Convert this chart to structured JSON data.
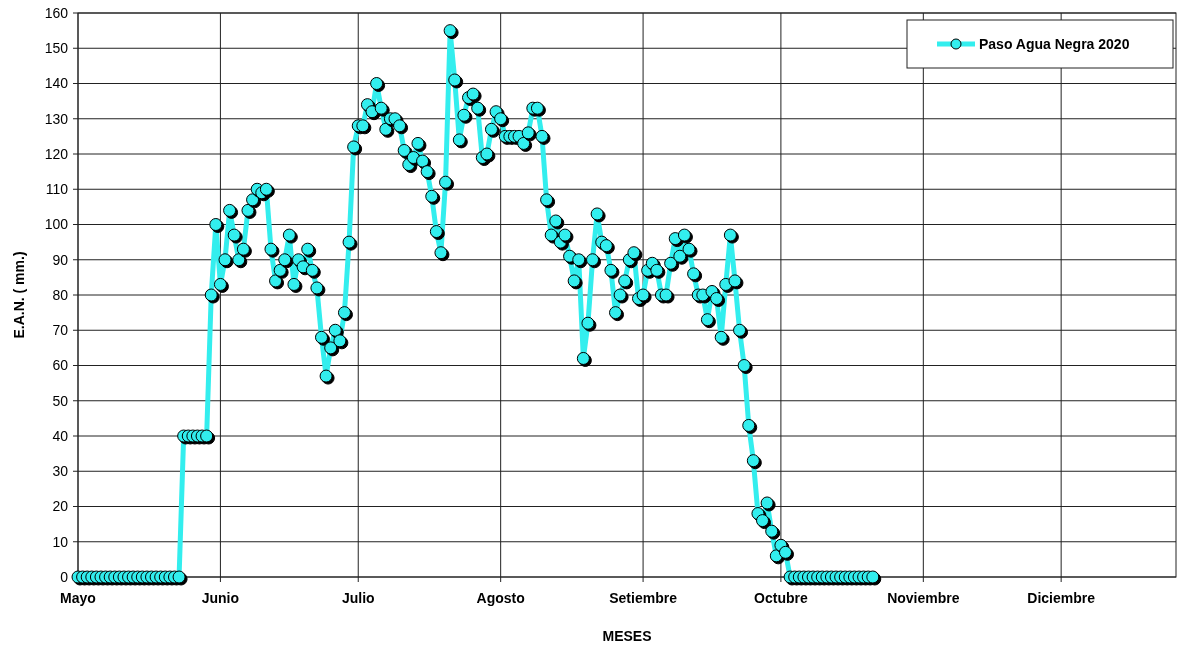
{
  "chart_data": {
    "type": "line",
    "xlabel": "MESES",
    "ylabel": "E.A.N. ( mm.)",
    "xlim": [
      "--05-01",
      "--12-26"
    ],
    "xticks": [
      {
        "value": "--05-01",
        "label": "Mayo"
      },
      {
        "value": "--06-01",
        "label": "Junio"
      },
      {
        "value": "--07-01",
        "label": "Julio"
      },
      {
        "value": "--08-01",
        "label": "Agosto"
      },
      {
        "value": "--09-01",
        "label": "Setiembre"
      },
      {
        "value": "--10-01",
        "label": "Octubre"
      },
      {
        "value": "--11-01",
        "label": "Noviembre"
      },
      {
        "value": "--12-01",
        "label": "Diciembre"
      }
    ],
    "ylim": [
      0,
      160
    ],
    "yticks": [
      0,
      10,
      20,
      30,
      40,
      50,
      60,
      70,
      80,
      90,
      100,
      110,
      120,
      130,
      140,
      150,
      160
    ],
    "grid": true,
    "legend": "top right",
    "marker": "circle",
    "line_style": "solid",
    "x": [
      "--05-01",
      "--05-02",
      "--05-03",
      "--05-04",
      "--05-05",
      "--05-06",
      "--05-07",
      "--05-08",
      "--05-09",
      "--05-10",
      "--05-11",
      "--05-12",
      "--05-13",
      "--05-14",
      "--05-15",
      "--05-16",
      "--05-17",
      "--05-18",
      "--05-19",
      "--05-20",
      "--05-21",
      "--05-22",
      "--05-23",
      "--05-24",
      "--05-25",
      "--05-26",
      "--05-27",
      "--05-28",
      "--05-29",
      "--05-30",
      "--05-31",
      "--06-01",
      "--06-02",
      "--06-03",
      "--06-04",
      "--06-05",
      "--06-06",
      "--06-07",
      "--06-08",
      "--06-09",
      "--06-10",
      "--06-11",
      "--06-12",
      "--06-13",
      "--06-14",
      "--06-15",
      "--06-16",
      "--06-17",
      "--06-18",
      "--06-19",
      "--06-20",
      "--06-21",
      "--06-22",
      "--06-23",
      "--06-24",
      "--06-25",
      "--06-26",
      "--06-27",
      "--06-28",
      "--06-29",
      "--06-30",
      "--07-01",
      "--07-02",
      "--07-03",
      "--07-04",
      "--07-05",
      "--07-06",
      "--07-07",
      "--07-08",
      "--07-09",
      "--07-10",
      "--07-11",
      "--07-12",
      "--07-13",
      "--07-14",
      "--07-15",
      "--07-16",
      "--07-17",
      "--07-18",
      "--07-19",
      "--07-20",
      "--07-21",
      "--07-22",
      "--07-23",
      "--07-24",
      "--07-25",
      "--07-26",
      "--07-27",
      "--07-28",
      "--07-29",
      "--07-30",
      "--07-31",
      "--08-01",
      "--08-02",
      "--08-03",
      "--08-04",
      "--08-05",
      "--08-06",
      "--08-07",
      "--08-08",
      "--08-09",
      "--08-10",
      "--08-11",
      "--08-12",
      "--08-13",
      "--08-14",
      "--08-15",
      "--08-16",
      "--08-17",
      "--08-18",
      "--08-19",
      "--08-20",
      "--08-21",
      "--08-22",
      "--08-23",
      "--08-24",
      "--08-25",
      "--08-26",
      "--08-27",
      "--08-28",
      "--08-29",
      "--08-30",
      "--08-31",
      "--09-01",
      "--09-02",
      "--09-03",
      "--09-04",
      "--09-05",
      "--09-06",
      "--09-07",
      "--09-08",
      "--09-09",
      "--09-10",
      "--09-11",
      "--09-12",
      "--09-13",
      "--09-14",
      "--09-15",
      "--09-16",
      "--09-17",
      "--09-18",
      "--09-19",
      "--09-20",
      "--09-21",
      "--09-22",
      "--09-23",
      "--09-24",
      "--09-25",
      "--09-26",
      "--09-27",
      "--09-28",
      "--09-29",
      "--09-30",
      "--10-01",
      "--10-02",
      "--10-03",
      "--10-04",
      "--10-05",
      "--10-06",
      "--10-07",
      "--10-08",
      "--10-09",
      "--10-10",
      "--10-11",
      "--10-12",
      "--10-13",
      "--10-14",
      "--10-15",
      "--10-16",
      "--10-17",
      "--10-18",
      "--10-19",
      "--10-20",
      "--10-21"
    ],
    "series": [
      {
        "name": "Paso Agua Negra 2020",
        "color": "#33eeee",
        "values": [
          0,
          0,
          0,
          0,
          0,
          0,
          0,
          0,
          0,
          0,
          0,
          0,
          0,
          0,
          0,
          0,
          0,
          0,
          0,
          0,
          0,
          0,
          0,
          40,
          40,
          40,
          40,
          40,
          40,
          80,
          100,
          83,
          90,
          104,
          97,
          90,
          93,
          104,
          107,
          110,
          109,
          110,
          93,
          84,
          87,
          90,
          97,
          83,
          90,
          88,
          93,
          87,
          82,
          68,
          57,
          65,
          70,
          67,
          75,
          95,
          122,
          128,
          128,
          134,
          132,
          140,
          133,
          127,
          130,
          130,
          128,
          121,
          117,
          119,
          123,
          118,
          115,
          108,
          98,
          92,
          112,
          155,
          141,
          124,
          131,
          136,
          137,
          133,
          119,
          120,
          127,
          132,
          130,
          125,
          125,
          125,
          125,
          123,
          126,
          133,
          133,
          125,
          107,
          97,
          101,
          95,
          97,
          91,
          84,
          90,
          62,
          72,
          90,
          103,
          95,
          94,
          87,
          75,
          80,
          84,
          90,
          92,
          79,
          80,
          87,
          89,
          87,
          80,
          80,
          89,
          96,
          91,
          97,
          93,
          86,
          80,
          80,
          73,
          81,
          79,
          68,
          83,
          97,
          84,
          70,
          60,
          43,
          33,
          18,
          16,
          21,
          13,
          6,
          9,
          7,
          0,
          0,
          0,
          0,
          0,
          0,
          0,
          0,
          0,
          0,
          0,
          0,
          0,
          0,
          0,
          0,
          0,
          0,
          0
        ]
      }
    ]
  }
}
